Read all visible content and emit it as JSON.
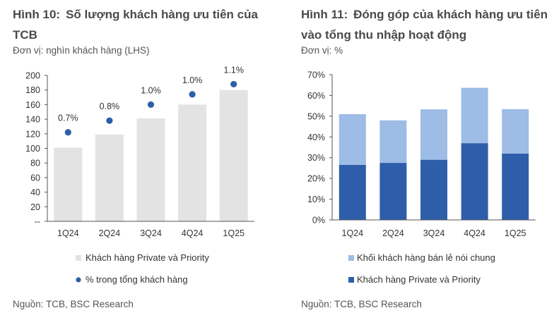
{
  "left": {
    "title_num": "Hình 10:",
    "title": "Số lượng khách hàng ưu tiên của TCB",
    "unit": "Đơn vị: nghìn khách hàng (LHS)",
    "source": "Nguồn: TCB, BSC Research"
  },
  "right": {
    "title_num": "Hình 11:",
    "title": "Đóng góp của khách hàng ưu tiên vào tổng thu nhập hoạt động",
    "unit": "Đơn vị: %",
    "source": "Nguồn: TCB, BSC Research"
  },
  "chart_data": [
    {
      "type": "bar",
      "categories": [
        "1Q24",
        "2Q24",
        "3Q24",
        "4Q24",
        "1Q25"
      ],
      "ylim": [
        0,
        200
      ],
      "yticks": [
        "--",
        "20",
        "40",
        "60",
        "80",
        "100",
        "120",
        "140",
        "160",
        "180",
        "200"
      ],
      "grid": false,
      "legend_position": "bottom",
      "series": [
        {
          "name": "Khách hàng Private và Priority",
          "kind": "bar",
          "color": "#e3e3e3",
          "values": [
            101,
            119,
            141,
            160,
            180
          ]
        },
        {
          "name": "% trong tổng khách hàng",
          "kind": "dot",
          "color": "#2e5eaa",
          "values": [
            122,
            138,
            160,
            174,
            188
          ],
          "labels": [
            "0.7%",
            "0.8%",
            "1.0%",
            "1.0%",
            "1.1%"
          ]
        }
      ]
    },
    {
      "type": "bar",
      "stacked": true,
      "categories": [
        "1Q24",
        "2Q24",
        "3Q24",
        "4Q24",
        "1Q25"
      ],
      "ylim": [
        0,
        70
      ],
      "yticks": [
        "0%",
        "10%",
        "20%",
        "30%",
        "40%",
        "50%",
        "60%",
        "70%"
      ],
      "grid": false,
      "legend_position": "bottom",
      "series": [
        {
          "name": "Khách hàng Private và Priority",
          "color": "#2e5eaa",
          "values": [
            26.5,
            27.5,
            29,
            37,
            32
          ]
        },
        {
          "name": "Khối khách hàng bán lẻ nói chung",
          "color": "#9dbce6",
          "values": [
            24.5,
            20.5,
            24.3,
            26.7,
            21.4
          ]
        }
      ],
      "legend_order": [
        "Khối khách hàng bán lẻ nói chung",
        "Khách hàng Private và Priority"
      ]
    }
  ]
}
